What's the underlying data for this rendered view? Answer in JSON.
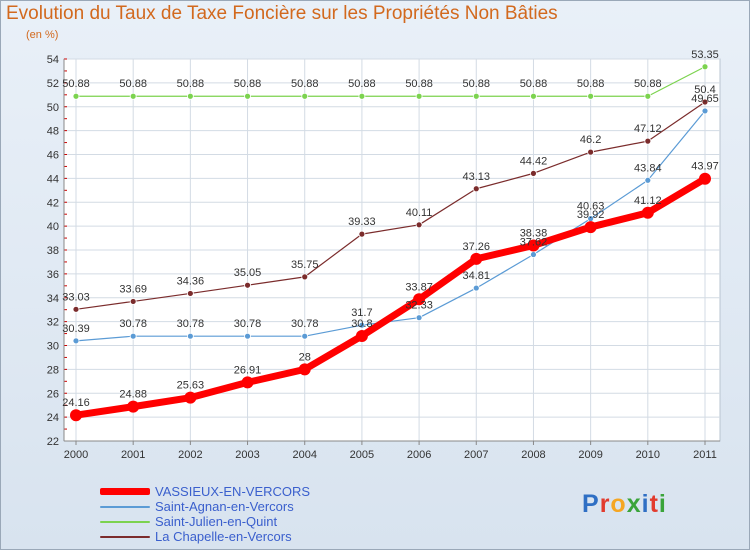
{
  "chart_data": {
    "type": "line",
    "title": "Evolution du Taux de Taxe Foncière sur les Propriétés Non Bâties",
    "subtitle": "(en %)",
    "x": [
      "2000",
      "2001",
      "2002",
      "2003",
      "2004",
      "2005",
      "2006",
      "2007",
      "2008",
      "2009",
      "2010",
      "2011"
    ],
    "ylim": [
      22,
      54
    ],
    "yticks": [
      22,
      24,
      26,
      28,
      30,
      32,
      34,
      36,
      38,
      40,
      42,
      44,
      46,
      48,
      50,
      52,
      54
    ],
    "grid": true,
    "legend_position": "bottom-left",
    "series": [
      {
        "name": "VASSIEUX-EN-VERCORS",
        "color": "#ff0000",
        "values": [
          24.16,
          24.88,
          25.63,
          26.91,
          28,
          30.8,
          33.87,
          37.26,
          38.38,
          39.92,
          41.12,
          43.97
        ],
        "labels": [
          "24.16",
          "24.88",
          "25.63",
          "26.91",
          "28",
          "30.8",
          "33.87",
          "37.26",
          "38.38",
          "39.92",
          "41.12",
          "43.97"
        ]
      },
      {
        "name": "Saint-Agnan-en-Vercors",
        "color": "#5b9bd5",
        "values": [
          30.39,
          30.78,
          30.78,
          30.78,
          30.78,
          31.7,
          32.33,
          34.81,
          37.62,
          40.63,
          43.84,
          49.65
        ],
        "labels": [
          "30.39",
          "30.78",
          "30.78",
          "30.78",
          "30.78",
          "31.7",
          "32.33",
          "34.81",
          "37.62",
          "40.63",
          "43.84",
          "49.65"
        ]
      },
      {
        "name": "Saint-Julien-en-Quint",
        "color": "#7cd34f",
        "values": [
          50.88,
          50.88,
          50.88,
          50.88,
          50.88,
          50.88,
          50.88,
          50.88,
          50.88,
          50.88,
          50.88,
          53.35
        ],
        "labels": [
          "50.88",
          "50.88",
          "50.88",
          "50.88",
          "50.88",
          "50.88",
          "50.88",
          "50.88",
          "50.88",
          "50.88",
          "50.88",
          "53.35"
        ]
      },
      {
        "name": "La Chapelle-en-Vercors",
        "color": "#7b2c2c",
        "values": [
          33.03,
          33.69,
          34.36,
          35.05,
          35.75,
          39.33,
          40.11,
          43.13,
          44.42,
          46.2,
          47.12,
          50.4
        ],
        "labels": [
          "33.03",
          "33.69",
          "34.36",
          "35.05",
          "35.75",
          "39.33",
          "40.11",
          "43.13",
          "44.42",
          "46.2",
          "47.12",
          "50.4"
        ]
      }
    ]
  },
  "legend": {
    "items": [
      {
        "label": "VASSIEUX-EN-VERCORS",
        "color": "#ff0000"
      },
      {
        "label": "Saint-Agnan-en-Vercors",
        "color": "#5b9bd5"
      },
      {
        "label": "Saint-Julien-en-Quint",
        "color": "#7cd34f"
      },
      {
        "label": "La Chapelle-en-Vercors",
        "color": "#7b2c2c"
      }
    ]
  },
  "logo": {
    "text": "Proxiti",
    "letter_colors": [
      "#2f6fc4",
      "#e23b2e",
      "#f5a623",
      "#3aa43a",
      "#2f6fc4",
      "#e23b2e",
      "#3aa43a"
    ]
  }
}
